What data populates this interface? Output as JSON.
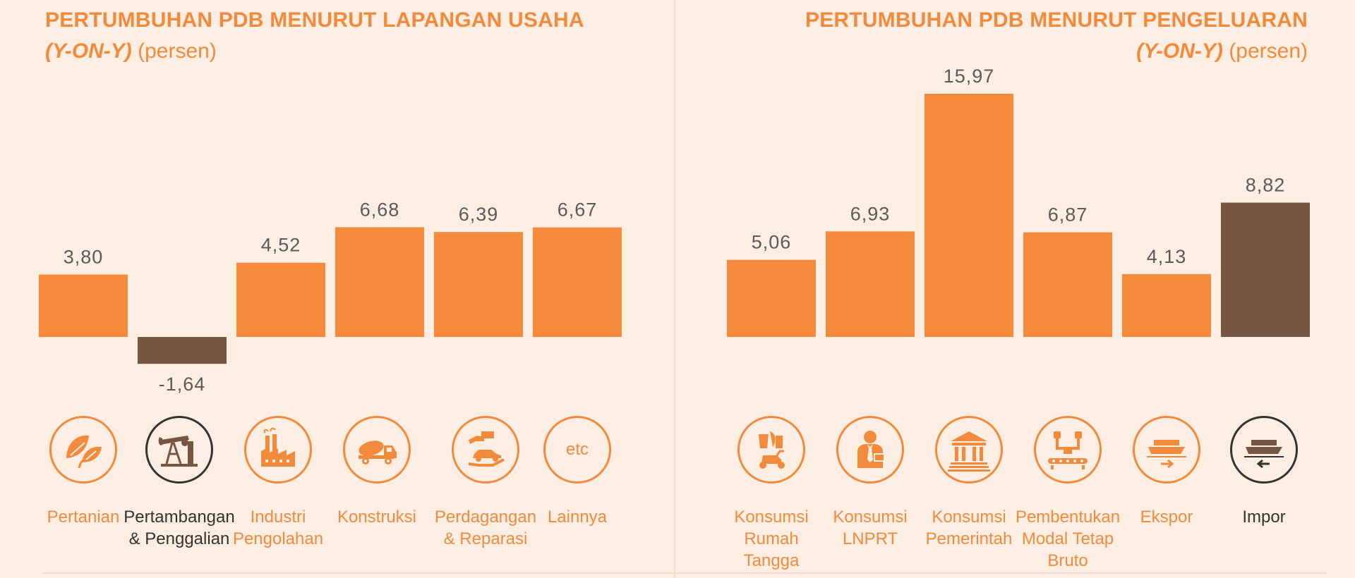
{
  "colors": {
    "orange": "#f58a3c",
    "brown": "#765541",
    "background": "#fdeee4",
    "text_dark": "#333333"
  },
  "left": {
    "title": "PERTUMBUHAN PDB MENURUT LAPANGAN USAHA",
    "subtitle_yoy": "(Y-ON-Y)",
    "subtitle_unit": "(persen)"
  },
  "right": {
    "title": "PERTUMBUHAN PDB MENURUT PENGELUARAN",
    "subtitle_yoy": "(Y-ON-Y)",
    "subtitle_unit": "(persen)"
  },
  "chart_data": [
    {
      "type": "bar",
      "title": "PERTUMBUHAN PDB MENURUT LAPANGAN USAHA (Y-ON-Y) (persen)",
      "categories": [
        "Pertanian",
        "Pertambangan & Penggalian",
        "Industri Pengolahan",
        "Konstruksi",
        "Perdagangan & Reparasi",
        "Lainnya"
      ],
      "values": [
        3.8,
        -1.64,
        4.52,
        6.68,
        6.39,
        6.67
      ],
      "value_labels": [
        "3,80",
        "-1,64",
        "4,52",
        "6,68",
        "6,39",
        "6,67"
      ],
      "highlight": [
        false,
        true,
        false,
        false,
        false,
        false
      ],
      "icons": [
        "leaves-icon",
        "oil-pump-icon",
        "factory-icon",
        "mixer-truck-icon",
        "hand-car-icon",
        "etc-icon"
      ],
      "etc_text": "etc"
    },
    {
      "type": "bar",
      "title": "PERTUMBUHAN PDB MENURUT PENGELUARAN (Y-ON-Y) (persen)",
      "categories": [
        "Konsumsi Rumah Tangga",
        "Konsumsi LNPRT",
        "Konsumsi Pemerintah",
        "Pembentukan Modal Tetap Bruto",
        "Ekspor",
        "Impor"
      ],
      "values": [
        5.06,
        6.93,
        15.97,
        6.87,
        4.13,
        8.82
      ],
      "value_labels": [
        "5,06",
        "6,93",
        "15,97",
        "6,87",
        "4,13",
        "8,82"
      ],
      "highlight": [
        false,
        false,
        false,
        false,
        false,
        true
      ],
      "icons": [
        "food-scooter-icon",
        "person-tie-icon",
        "government-building-icon",
        "robot-arm-icon",
        "ship-export-icon",
        "ship-import-icon"
      ]
    }
  ]
}
